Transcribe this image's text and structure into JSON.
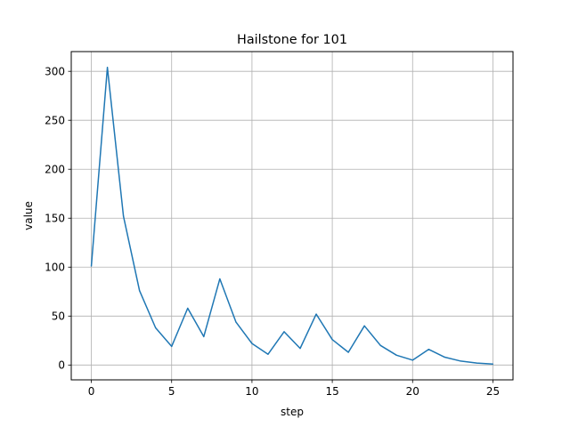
{
  "chart_data": {
    "type": "line",
    "title": "Hailstone for 101",
    "xlabel": "step",
    "ylabel": "value",
    "x": [
      0,
      1,
      2,
      3,
      4,
      5,
      6,
      7,
      8,
      9,
      10,
      11,
      12,
      13,
      14,
      15,
      16,
      17,
      18,
      19,
      20,
      21,
      22,
      23,
      24,
      25
    ],
    "series": [
      {
        "values": [
          101,
          304,
          152,
          76,
          38,
          19,
          58,
          29,
          88,
          44,
          22,
          11,
          34,
          17,
          52,
          26,
          13,
          40,
          20,
          10,
          5,
          16,
          8,
          4,
          2,
          1
        ],
        "color": "#1f77b4"
      }
    ],
    "xlim": [
      -1.25,
      26.25
    ],
    "ylim": [
      -15.15,
      320.15
    ],
    "xticks": [
      0,
      5,
      10,
      15,
      20,
      25
    ],
    "yticks": [
      0,
      50,
      100,
      150,
      200,
      250,
      300
    ],
    "grid": true,
    "grid_color": "#b0b0b0",
    "legend": false
  }
}
